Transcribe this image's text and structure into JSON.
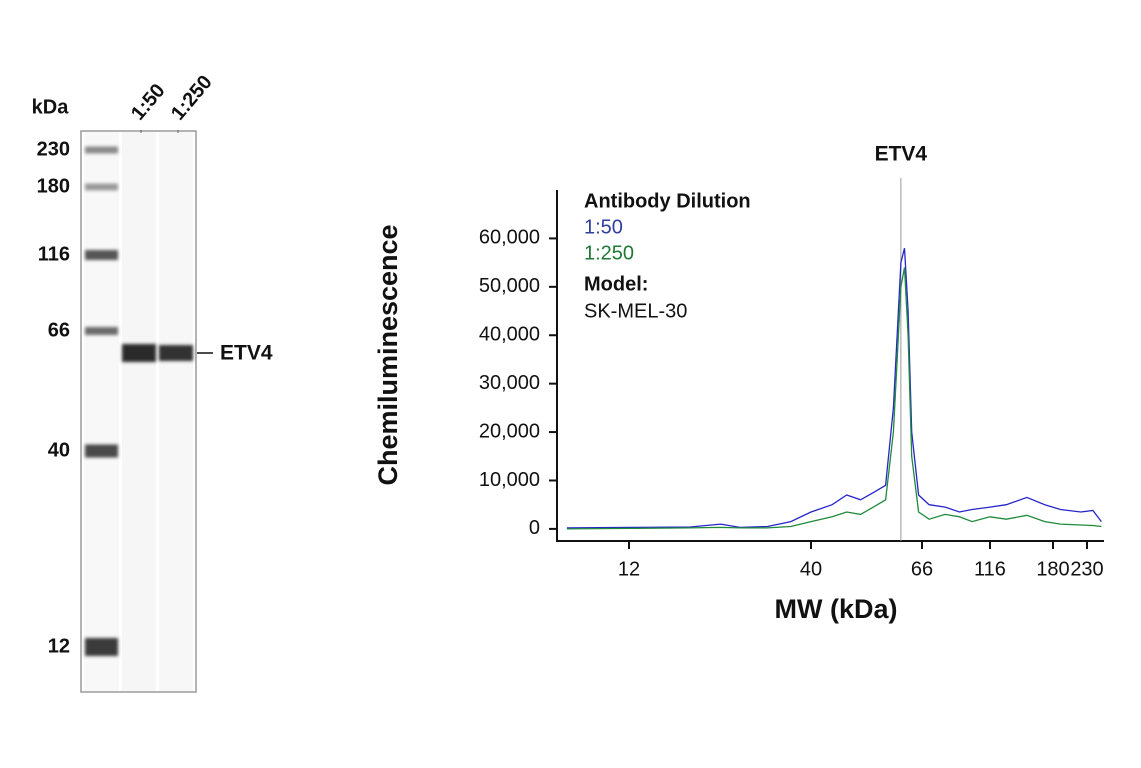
{
  "blot": {
    "unit_label": "kDa",
    "markers": [
      230,
      180,
      116,
      66,
      40,
      12
    ],
    "lanes": [
      "1:50",
      "1:250"
    ],
    "band_label": "ETV4"
  },
  "chart_data": {
    "type": "line",
    "marker": {
      "text": "ETV4",
      "x": 60
    },
    "ylabel": "Chemiluminescence",
    "xlabel": "MW (kDa)",
    "legend_title": "Antibody Dilution",
    "model_label": "Model:",
    "model": "SK-MEL-30",
    "log_scale": true,
    "x": [
      8,
      12,
      18,
      22,
      25,
      30,
      35,
      40,
      44,
      47,
      50,
      53,
      56,
      58,
      60,
      61,
      62,
      63,
      65,
      70,
      80,
      90,
      100,
      116,
      130,
      150,
      170,
      190,
      220,
      240,
      255
    ],
    "series": [
      {
        "name": "1:50",
        "color": "#2626c8",
        "label_color": "#2e3f9e",
        "values": [
          200,
          300,
          400,
          1000,
          300,
          500,
          1500,
          3500,
          5000,
          7000,
          6000,
          7500,
          9000,
          25000,
          55000,
          58000,
          45000,
          20000,
          7000,
          5000,
          4500,
          3500,
          4000,
          4500,
          5000,
          6500,
          5000,
          4000,
          3500,
          3800,
          1500
        ]
      },
      {
        "name": "1:250",
        "color": "#1e8a3a",
        "label_color": "#1e7a35",
        "values": [
          0,
          100,
          200,
          300,
          200,
          200,
          500,
          1500,
          2500,
          3500,
          3000,
          4500,
          6000,
          20000,
          50000,
          54000,
          40000,
          15000,
          3500,
          2000,
          3000,
          2500,
          1500,
          2500,
          2000,
          2800,
          1500,
          1000,
          800,
          700,
          500
        ]
      }
    ],
    "xlim": [
      7.5,
      258
    ],
    "xticks": [
      12,
      40,
      66,
      116,
      180,
      230
    ],
    "ylim": [
      -2500,
      70000
    ],
    "yticks": [
      0,
      {
        "value": 10000,
        "label": "10,000"
      },
      {
        "value": 20000,
        "label": "20,000"
      },
      {
        "value": 30000,
        "label": "30,000"
      },
      {
        "value": 40000,
        "label": "40,000"
      },
      {
        "value": 50000,
        "label": "50,000"
      },
      {
        "value": 60000,
        "label": "60,000"
      }
    ]
  }
}
